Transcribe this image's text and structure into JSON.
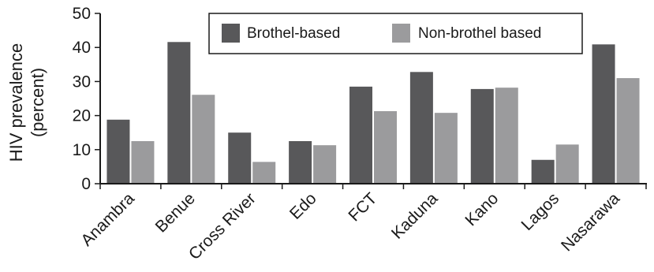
{
  "chart_data": {
    "type": "bar",
    "title": "",
    "xlabel": "",
    "ylabel": "HIV prevalence",
    "ylabel_line2": "(percent)",
    "ylim": [
      0,
      50
    ],
    "yticks": [
      0,
      10,
      20,
      30,
      40,
      50
    ],
    "categories": [
      "Anambra",
      "Benue",
      "Cross River",
      "Edo",
      "FCT",
      "Kaduna",
      "Kano",
      "Lagos",
      "Nasarawa"
    ],
    "series": [
      {
        "name": "Brothel-based",
        "color": "#58585a",
        "values": [
          18.8,
          41.6,
          15.0,
          12.5,
          28.5,
          32.8,
          27.8,
          7.0,
          40.9
        ]
      },
      {
        "name": "Non-brothel based",
        "color": "#9b9b9d",
        "values": [
          12.5,
          26.1,
          6.4,
          11.3,
          21.3,
          20.8,
          28.2,
          11.5,
          31.0
        ]
      }
    ],
    "legend": "top-center",
    "grid": false
  }
}
